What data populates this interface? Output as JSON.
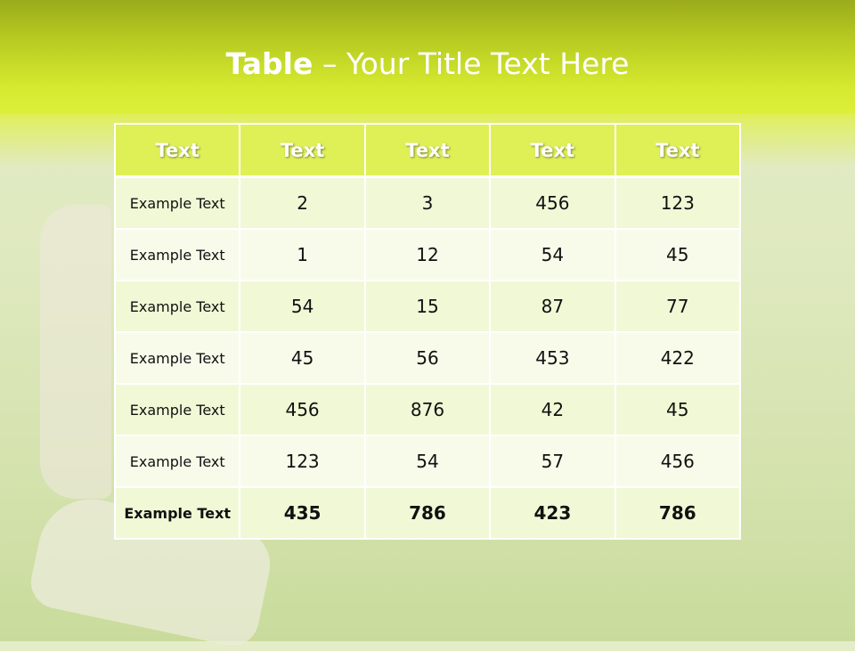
{
  "slide": {
    "title_bold": "Table",
    "title_rest": " – Your Title Text Here"
  },
  "colors": {
    "header_bg": "#dff056",
    "banner": "#d6ea30",
    "row_odd": "#f1f8d6",
    "row_even": "#f8fbea"
  },
  "table": {
    "headers": [
      "Text",
      "Text",
      "Text",
      "Text",
      "Text"
    ],
    "rows": [
      [
        "Example Text",
        "2",
        "3",
        "456",
        "123"
      ],
      [
        "Example Text",
        "1",
        "12",
        "54",
        "45"
      ],
      [
        "Example Text",
        "54",
        "15",
        "87",
        "77"
      ],
      [
        "Example Text",
        "45",
        "56",
        "453",
        "422"
      ],
      [
        "Example Text",
        "456",
        "876",
        "42",
        "45"
      ],
      [
        "Example Text",
        "123",
        "54",
        "57",
        "456"
      ],
      [
        "Example Text",
        "435",
        "786",
        "423",
        "786"
      ]
    ]
  }
}
